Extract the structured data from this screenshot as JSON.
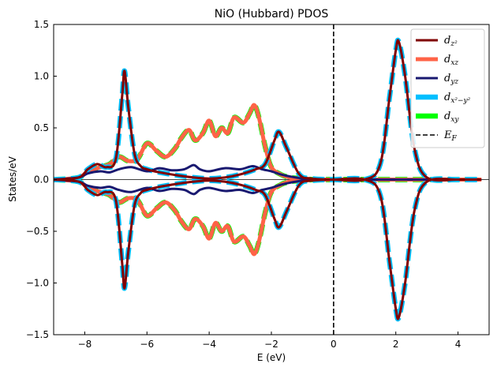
{
  "chart_data": {
    "type": "line",
    "title": "NiO (Hubbard) PDOS",
    "xlabel": "E (eV)",
    "ylabel": "States/eV",
    "xlim": [
      -9,
      5
    ],
    "ylim": [
      -1.5,
      1.5
    ],
    "xticks": [
      -8,
      -6,
      -4,
      -2,
      0,
      2,
      4
    ],
    "xtick_labels": [
      "−8",
      "−6",
      "−4",
      "−2",
      "0",
      "2",
      "4"
    ],
    "yticks": [
      -1.5,
      -1.0,
      -0.5,
      0.0,
      0.5,
      1.0,
      1.5
    ],
    "ytick_labels": [
      "−1.5",
      "−1.0",
      "−0.5",
      "0.0",
      "0.5",
      "1.0",
      "1.5"
    ],
    "grid": false,
    "legend_position": "top-right",
    "fermi_level": 0,
    "zero_line": true,
    "series": [
      {
        "name": "dz2",
        "label_main": "d",
        "label_sub": "z²",
        "color": "#800000",
        "style": "solid",
        "x": [
          -9,
          -8.2,
          -7.9,
          -7.6,
          -7.3,
          -7.0,
          -6.8,
          -6.72,
          -6.6,
          -6.4,
          -6.2,
          -6.0,
          -5.6,
          -5.0,
          -4.5,
          -4.0,
          -3.5,
          -3.0,
          -2.5,
          -2.2,
          -1.9,
          -1.75,
          -1.5,
          -1.1,
          -0.7,
          0.0,
          1.0,
          1.5,
          1.8,
          2.0,
          2.1,
          2.3,
          2.6,
          3.0,
          4.0,
          4.75
        ],
        "y": [
          0.0,
          0.02,
          0.1,
          0.15,
          0.12,
          0.2,
          0.8,
          1.05,
          0.7,
          0.25,
          0.13,
          0.1,
          0.07,
          0.04,
          0.02,
          0.01,
          0.02,
          0.05,
          0.1,
          0.15,
          0.38,
          0.46,
          0.3,
          0.05,
          0.01,
          0.0,
          0.0,
          0.15,
          0.8,
          1.25,
          1.33,
          1.0,
          0.3,
          0.02,
          0.0,
          0.0
        ]
      },
      {
        "name": "dxz",
        "label_main": "d",
        "label_sub": "xz",
        "color": "#ff6347",
        "style": "solid",
        "x": [
          -9,
          -8.2,
          -7.9,
          -7.5,
          -7.2,
          -6.9,
          -6.6,
          -6.3,
          -6.0,
          -5.7,
          -5.4,
          -5.1,
          -4.9,
          -4.65,
          -4.45,
          -4.2,
          -4.0,
          -3.8,
          -3.6,
          -3.4,
          -3.2,
          -2.9,
          -2.7,
          -2.55,
          -2.4,
          -2.2,
          -2.0,
          -1.7,
          -1.4,
          -1.0,
          -0.6,
          0.0,
          4.75
        ],
        "y": [
          0.0,
          0.02,
          0.08,
          0.12,
          0.15,
          0.22,
          0.18,
          0.2,
          0.35,
          0.28,
          0.22,
          0.3,
          0.4,
          0.48,
          0.38,
          0.45,
          0.57,
          0.42,
          0.5,
          0.45,
          0.6,
          0.55,
          0.64,
          0.72,
          0.6,
          0.32,
          0.12,
          0.05,
          0.02,
          0.01,
          0.0,
          0.0,
          0.0
        ]
      },
      {
        "name": "dyz",
        "label_main": "d",
        "label_sub": "yz",
        "color": "#191970",
        "style": "solid",
        "x": [
          -9,
          -8.2,
          -7.9,
          -7.5,
          -7.2,
          -6.9,
          -6.5,
          -6.0,
          -5.6,
          -5.2,
          -4.8,
          -4.5,
          -4.3,
          -4.0,
          -3.5,
          -3.0,
          -2.6,
          -2.3,
          -2.0,
          -1.7,
          -1.4,
          -1.0,
          -0.6,
          0.0,
          4.75
        ],
        "y": [
          0.0,
          0.02,
          0.06,
          0.08,
          0.07,
          0.1,
          0.12,
          0.08,
          0.11,
          0.09,
          0.1,
          0.14,
          0.1,
          0.08,
          0.11,
          0.1,
          0.13,
          0.1,
          0.08,
          0.05,
          0.03,
          0.01,
          0.0,
          0.0,
          0.0
        ]
      },
      {
        "name": "dx2-y2",
        "label_main": "d",
        "label_sub": "x²−y²",
        "color": "#00bfff",
        "style": "dashed",
        "x": [
          -9,
          -8.2,
          -7.9,
          -7.6,
          -7.3,
          -7.0,
          -6.8,
          -6.72,
          -6.6,
          -6.4,
          -6.2,
          -6.0,
          -5.6,
          -5.0,
          -4.5,
          -4.0,
          -3.5,
          -3.0,
          -2.5,
          -2.2,
          -1.9,
          -1.75,
          -1.5,
          -1.1,
          -0.7,
          0.0,
          1.0,
          1.5,
          1.8,
          2.0,
          2.1,
          2.3,
          2.6,
          3.0,
          4.0,
          4.75
        ],
        "y": [
          0.0,
          0.02,
          0.1,
          0.15,
          0.12,
          0.2,
          0.8,
          1.05,
          0.7,
          0.25,
          0.13,
          0.1,
          0.07,
          0.04,
          0.02,
          0.01,
          0.02,
          0.05,
          0.1,
          0.15,
          0.38,
          0.46,
          0.3,
          0.05,
          0.01,
          0.0,
          0.0,
          0.15,
          0.8,
          1.25,
          1.33,
          1.0,
          0.3,
          0.02,
          0.0,
          0.0
        ]
      },
      {
        "name": "dxy",
        "label_main": "d",
        "label_sub": "xy",
        "color": "#00ff00",
        "style": "dashed",
        "x": [
          -9,
          -8.2,
          -7.9,
          -7.5,
          -7.2,
          -6.9,
          -6.6,
          -6.3,
          -6.0,
          -5.7,
          -5.4,
          -5.1,
          -4.9,
          -4.65,
          -4.45,
          -4.2,
          -4.0,
          -3.8,
          -3.6,
          -3.4,
          -3.2,
          -2.9,
          -2.7,
          -2.55,
          -2.4,
          -2.2,
          -2.0,
          -1.7,
          -1.4,
          -1.0,
          -0.6,
          0.0,
          4.75
        ],
        "y": [
          0.0,
          0.02,
          0.08,
          0.12,
          0.15,
          0.22,
          0.18,
          0.2,
          0.35,
          0.28,
          0.22,
          0.3,
          0.4,
          0.48,
          0.38,
          0.45,
          0.57,
          0.42,
          0.5,
          0.45,
          0.6,
          0.55,
          0.64,
          0.72,
          0.6,
          0.32,
          0.12,
          0.05,
          0.02,
          0.01,
          0.0,
          0.0,
          0.0
        ]
      }
    ],
    "mirror_negative": true,
    "fermi_label_main": "E",
    "fermi_label_sub": "F",
    "fermi_color": "#000000"
  }
}
